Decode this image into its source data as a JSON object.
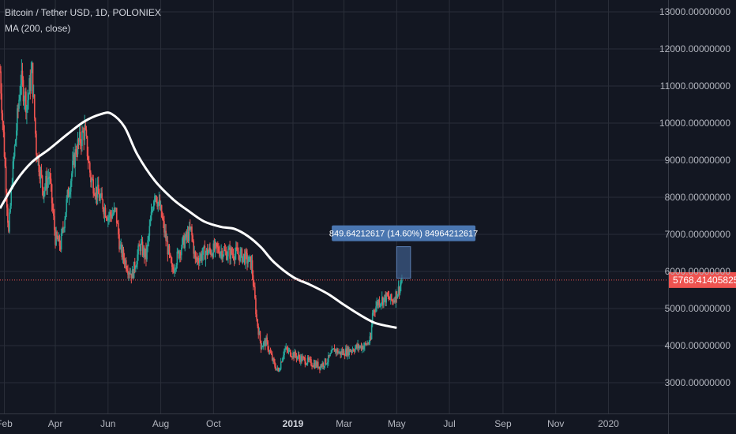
{
  "header": {
    "symbol": "Bitcoin / Tether USD, 1D, POLONIEX",
    "indicator": "MA (200, close)"
  },
  "price_tag": "5768.41405825",
  "measure_label": "849.64212617 (14.60%) 84964212617",
  "colors": {
    "background": "#131722",
    "grid": "#2a2e39",
    "up": "#26a69a",
    "down": "#ef5350",
    "ma": "#ffffff",
    "price_tag": "#ef5350",
    "measure_box": "#3c5a85",
    "measure_label_bg": "#4a76b0"
  },
  "chart_data": {
    "type": "candlestick",
    "ylim": [
      2500,
      13300
    ],
    "y_ticks": [
      {
        "value": 3000,
        "label": "3000.00000000"
      },
      {
        "value": 4000,
        "label": "4000.00000000"
      },
      {
        "value": 5000,
        "label": "5000.00000000"
      },
      {
        "value": 6000,
        "label": "6000.00000000"
      },
      {
        "value": 7000,
        "label": "7000.00000000"
      },
      {
        "value": 8000,
        "label": "8000.00000000"
      },
      {
        "value": 9000,
        "label": "9000.00000000"
      },
      {
        "value": 10000,
        "label": "10000.00000000"
      },
      {
        "value": 11000,
        "label": "11000.00000000"
      },
      {
        "value": 12000,
        "label": "12000.00000000"
      },
      {
        "value": 13000,
        "label": "13000.00000000"
      }
    ],
    "x_ticks": [
      {
        "date": "2018-02-01",
        "label": "Feb",
        "bold": false
      },
      {
        "date": "2018-04-01",
        "label": "Apr",
        "bold": false
      },
      {
        "date": "2018-06-01",
        "label": "Jun",
        "bold": false
      },
      {
        "date": "2018-08-01",
        "label": "Aug",
        "bold": false
      },
      {
        "date": "2018-10-01",
        "label": "Oct",
        "bold": false
      },
      {
        "date": "2019-01-01",
        "label": "2019",
        "bold": true
      },
      {
        "date": "2019-03-01",
        "label": "Mar",
        "bold": false
      },
      {
        "date": "2019-05-01",
        "label": "May",
        "bold": false
      },
      {
        "date": "2019-07-01",
        "label": "Jul",
        "bold": false
      },
      {
        "date": "2019-09-01",
        "label": "Sep",
        "bold": false
      },
      {
        "date": "2019-11-01",
        "label": "Nov",
        "bold": false
      },
      {
        "date": "2020-01-01",
        "label": "2020",
        "bold": false
      }
    ],
    "x_range": [
      "2018-01-27",
      "2020-03-10"
    ],
    "last_price": 5768.41405825,
    "close_series": [
      {
        "date": "2018-01-27",
        "close": 11400
      },
      {
        "date": "2018-02-02",
        "close": 8800
      },
      {
        "date": "2018-02-06",
        "close": 7000
      },
      {
        "date": "2018-02-10",
        "close": 8500
      },
      {
        "date": "2018-02-20",
        "close": 11200
      },
      {
        "date": "2018-02-27",
        "close": 10500
      },
      {
        "date": "2018-03-05",
        "close": 11400
      },
      {
        "date": "2018-03-10",
        "close": 9300
      },
      {
        "date": "2018-03-18",
        "close": 8200
      },
      {
        "date": "2018-03-25",
        "close": 8600
      },
      {
        "date": "2018-04-01",
        "close": 6900
      },
      {
        "date": "2018-04-07",
        "close": 6700
      },
      {
        "date": "2018-04-15",
        "close": 8000
      },
      {
        "date": "2018-04-25",
        "close": 9300
      },
      {
        "date": "2018-05-05",
        "close": 9800
      },
      {
        "date": "2018-05-12",
        "close": 8500
      },
      {
        "date": "2018-05-22",
        "close": 8000
      },
      {
        "date": "2018-06-01",
        "close": 7500
      },
      {
        "date": "2018-06-10",
        "close": 7600
      },
      {
        "date": "2018-06-15",
        "close": 6600
      },
      {
        "date": "2018-06-24",
        "close": 6100
      },
      {
        "date": "2018-06-29",
        "close": 5900
      },
      {
        "date": "2018-07-08",
        "close": 6700
      },
      {
        "date": "2018-07-15",
        "close": 6400
      },
      {
        "date": "2018-07-25",
        "close": 8200
      },
      {
        "date": "2018-08-01",
        "close": 7600
      },
      {
        "date": "2018-08-10",
        "close": 6500
      },
      {
        "date": "2018-08-14",
        "close": 6000
      },
      {
        "date": "2018-08-25",
        "close": 6700
      },
      {
        "date": "2018-09-05",
        "close": 7100
      },
      {
        "date": "2018-09-10",
        "close": 6300
      },
      {
        "date": "2018-09-20",
        "close": 6500
      },
      {
        "date": "2018-10-05",
        "close": 6600
      },
      {
        "date": "2018-10-15",
        "close": 6500
      },
      {
        "date": "2018-10-25",
        "close": 6500
      },
      {
        "date": "2018-11-05",
        "close": 6400
      },
      {
        "date": "2018-11-14",
        "close": 6200
      },
      {
        "date": "2018-11-20",
        "close": 4700
      },
      {
        "date": "2018-11-25",
        "close": 4000
      },
      {
        "date": "2018-12-01",
        "close": 4100
      },
      {
        "date": "2018-12-10",
        "close": 3500
      },
      {
        "date": "2018-12-15",
        "close": 3300
      },
      {
        "date": "2018-12-22",
        "close": 3900
      },
      {
        "date": "2018-12-30",
        "close": 3800
      },
      {
        "date": "2019-01-10",
        "close": 3650
      },
      {
        "date": "2019-01-20",
        "close": 3550
      },
      {
        "date": "2019-02-01",
        "close": 3450
      },
      {
        "date": "2019-02-10",
        "close": 3600
      },
      {
        "date": "2019-02-18",
        "close": 3900
      },
      {
        "date": "2019-02-24",
        "close": 3800
      },
      {
        "date": "2019-03-05",
        "close": 3850
      },
      {
        "date": "2019-03-15",
        "close": 3950
      },
      {
        "date": "2019-03-25",
        "close": 4000
      },
      {
        "date": "2019-04-01",
        "close": 4150
      },
      {
        "date": "2019-04-03",
        "close": 4900
      },
      {
        "date": "2019-04-10",
        "close": 5200
      },
      {
        "date": "2019-04-20",
        "close": 5300
      },
      {
        "date": "2019-04-26",
        "close": 5200
      },
      {
        "date": "2019-05-03",
        "close": 5500
      },
      {
        "date": "2019-05-07",
        "close": 5770
      }
    ],
    "ma_series": [
      {
        "date": "2018-01-27",
        "value": 7700
      },
      {
        "date": "2018-02-15",
        "value": 8450
      },
      {
        "date": "2018-03-05",
        "value": 8950
      },
      {
        "date": "2018-03-25",
        "value": 9300
      },
      {
        "date": "2018-04-15",
        "value": 9700
      },
      {
        "date": "2018-05-05",
        "value": 10050
      },
      {
        "date": "2018-05-25",
        "value": 10250
      },
      {
        "date": "2018-06-05",
        "value": 10250
      },
      {
        "date": "2018-06-20",
        "value": 9900
      },
      {
        "date": "2018-07-05",
        "value": 9150
      },
      {
        "date": "2018-07-25",
        "value": 8450
      },
      {
        "date": "2018-08-15",
        "value": 7950
      },
      {
        "date": "2018-09-01",
        "value": 7650
      },
      {
        "date": "2018-09-20",
        "value": 7350
      },
      {
        "date": "2018-10-10",
        "value": 7200
      },
      {
        "date": "2018-10-25",
        "value": 7150
      },
      {
        "date": "2018-11-10",
        "value": 6950
      },
      {
        "date": "2018-11-25",
        "value": 6650
      },
      {
        "date": "2018-12-10",
        "value": 6250
      },
      {
        "date": "2019-01-01",
        "value": 5850
      },
      {
        "date": "2019-01-20",
        "value": 5650
      },
      {
        "date": "2019-02-10",
        "value": 5400
      },
      {
        "date": "2019-03-01",
        "value": 5100
      },
      {
        "date": "2019-03-20",
        "value": 4820
      },
      {
        "date": "2019-04-05",
        "value": 4620
      },
      {
        "date": "2019-04-20",
        "value": 4530
      },
      {
        "date": "2019-05-01",
        "value": 4480
      }
    ],
    "measure": {
      "from_date": "2019-05-01",
      "to_date": "2019-05-17",
      "from_price": 5818,
      "to_price": 6668
    }
  }
}
